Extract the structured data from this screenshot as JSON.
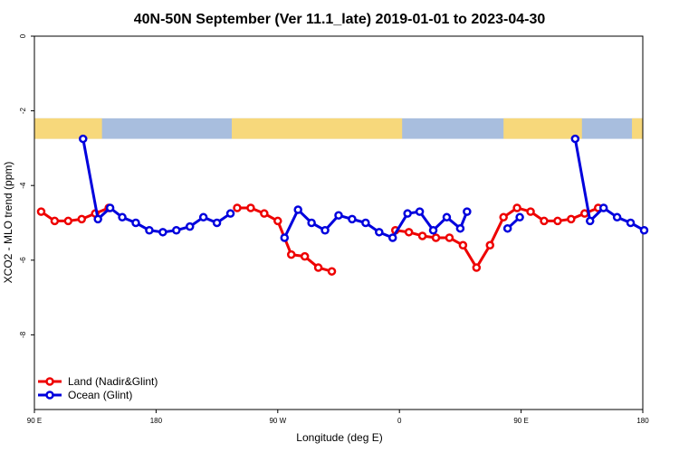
{
  "chart_data": {
    "type": "line",
    "title": "40N-50N September (Ver 11.1_late)   2019-01-01 to 2023-04-30",
    "xlabel": "Longitude (deg E)",
    "ylabel": "XCO2 - MLO trend (ppm)",
    "x_ticks": [
      {
        "value": 90,
        "label": "90 E"
      },
      {
        "value": 180,
        "label": "180"
      },
      {
        "value": 270,
        "label": "90 W"
      },
      {
        "value": 360,
        "label": "0"
      },
      {
        "value": 450,
        "label": "90 E"
      },
      {
        "value": 540,
        "label": "180"
      }
    ],
    "y_ticks": [
      0,
      -2,
      -4,
      -6,
      -8
    ],
    "xlim": [
      90,
      540
    ],
    "ylim": [
      -10,
      0
    ],
    "legend_position": "bottom-left",
    "background_map_band": {
      "ymin": -2.75,
      "ymax": -2.2,
      "ocean_color": "#a8bede",
      "land_color": "#f7d87b"
    },
    "series": [
      {
        "name": "Land (Nadir&Glint)",
        "color": "#ee0000",
        "segments": [
          [
            [
              95,
              -4.7
            ],
            [
              105,
              -4.95
            ],
            [
              115,
              -4.95
            ],
            [
              125,
              -4.9
            ],
            [
              135,
              -4.75
            ],
            [
              145,
              -4.6
            ]
          ],
          [
            [
              240,
              -4.6
            ],
            [
              250,
              -4.6
            ],
            [
              260,
              -4.75
            ],
            [
              270,
              -4.95
            ],
            [
              280,
              -5.85
            ],
            [
              290,
              -5.9
            ],
            [
              300,
              -6.2
            ],
            [
              310,
              -6.3
            ]
          ],
          [
            [
              357,
              -5.2
            ],
            [
              367,
              -5.25
            ],
            [
              377,
              -5.35
            ],
            [
              387,
              -5.4
            ],
            [
              397,
              -5.4
            ],
            [
              407,
              -5.6
            ],
            [
              417,
              -6.2
            ],
            [
              427,
              -5.6
            ],
            [
              437,
              -4.85
            ],
            [
              447,
              -4.6
            ],
            [
              457,
              -4.7
            ],
            [
              467,
              -4.95
            ],
            [
              477,
              -4.95
            ],
            [
              487,
              -4.9
            ],
            [
              497,
              -4.75
            ],
            [
              507,
              -4.6
            ]
          ]
        ]
      },
      {
        "name": "Ocean (Glint)",
        "color": "#0000dd",
        "segments": [
          [
            [
              126,
              -2.75
            ],
            [
              137,
              -4.9
            ],
            [
              146,
              -4.6
            ],
            [
              155,
              -4.85
            ],
            [
              165,
              -5.0
            ],
            [
              175,
              -5.2
            ],
            [
              185,
              -5.25
            ],
            [
              195,
              -5.2
            ],
            [
              205,
              -5.1
            ],
            [
              215,
              -4.85
            ],
            [
              225,
              -5.0
            ],
            [
              235,
              -4.75
            ]
          ],
          [
            [
              275,
              -5.4
            ],
            [
              285,
              -4.65
            ],
            [
              295,
              -5.0
            ],
            [
              305,
              -5.2
            ],
            [
              315,
              -4.8
            ],
            [
              325,
              -4.9
            ],
            [
              335,
              -5.0
            ],
            [
              345,
              -5.25
            ],
            [
              355,
              -5.4
            ],
            [
              366,
              -4.75
            ],
            [
              375,
              -4.7
            ],
            [
              385,
              -5.2
            ],
            [
              395,
              -4.85
            ],
            [
              405,
              -5.15
            ],
            [
              410,
              -4.7
            ]
          ],
          [
            [
              440,
              -5.15
            ],
            [
              449,
              -4.85
            ]
          ],
          [
            [
              490,
              -2.75
            ],
            [
              501,
              -4.95
            ],
            [
              511,
              -4.6
            ],
            [
              521,
              -4.85
            ],
            [
              531,
              -5.0
            ],
            [
              541,
              -5.2
            ]
          ]
        ]
      }
    ]
  }
}
